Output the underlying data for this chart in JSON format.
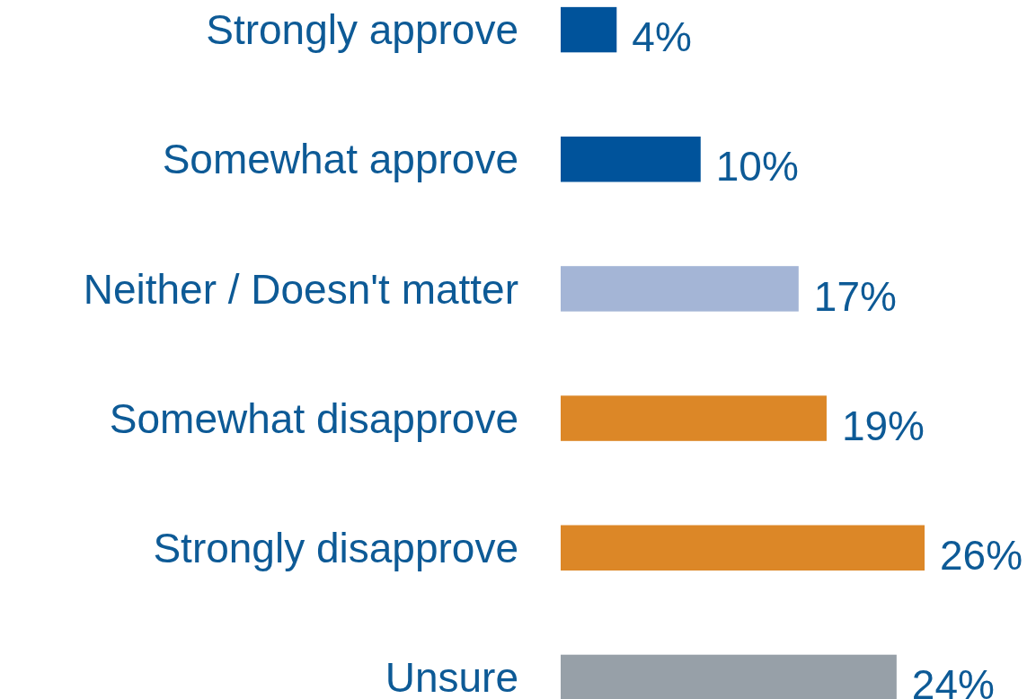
{
  "chart_data": {
    "type": "bar",
    "orientation": "horizontal",
    "categories": [
      "Strongly approve",
      "Somewhat approve",
      "Neither / Doesn't matter",
      "Somewhat disapprove",
      "Strongly disapprove",
      "Unsure"
    ],
    "values": [
      4,
      10,
      17,
      19,
      26,
      24
    ],
    "value_labels": [
      "4%",
      "10%",
      "17%",
      "19%",
      "26%",
      "24%"
    ],
    "colors": [
      "#00539b",
      "#00539b",
      "#a4b5d6",
      "#dc8727",
      "#dc8727",
      "#97a0a8"
    ]
  }
}
